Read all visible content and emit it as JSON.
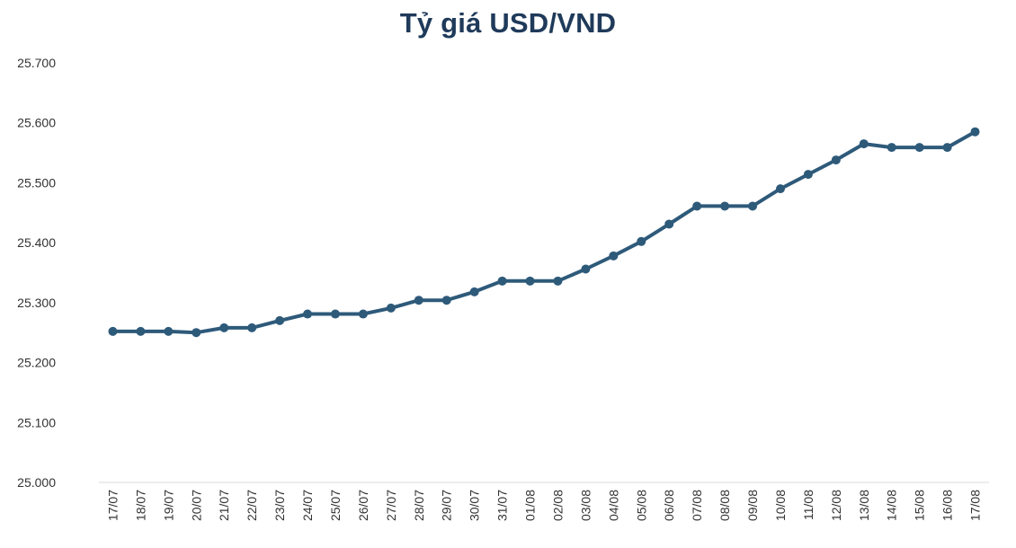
{
  "chart_data": {
    "type": "line",
    "title": "Tỷ giá USD/VND",
    "xlabel": "",
    "ylabel": "",
    "ylim": [
      25000,
      25700
    ],
    "ytick_step": 100,
    "ytick_labels": [
      "25.000",
      "25.100",
      "25.200",
      "25.300",
      "25.400",
      "25.500",
      "25.600",
      "25.700"
    ],
    "grid": false,
    "legend": "none",
    "line_color": "#2e5a7a",
    "categories": [
      "17/07",
      "18/07",
      "19/07",
      "20/07",
      "21/07",
      "22/07",
      "23/07",
      "24/07",
      "25/07",
      "26/07",
      "27/07",
      "28/07",
      "29/07",
      "30/07",
      "31/07",
      "01/08",
      "02/08",
      "03/08",
      "04/08",
      "05/08",
      "06/08",
      "07/08",
      "08/08",
      "09/08",
      "10/08",
      "11/08",
      "12/08",
      "13/08",
      "14/08",
      "15/08",
      "16/08",
      "17/08"
    ],
    "series": [
      {
        "values": [
          25252,
          25252,
          25252,
          25250,
          25258,
          25258,
          25270,
          25281,
          25281,
          25281,
          25291,
          25304,
          25304,
          25318,
          25336,
          25336,
          25336,
          25356,
          25378,
          25402,
          25431,
          25461,
          25461,
          25461,
          25490,
          25514,
          25538,
          25565,
          25559,
          25559,
          25559,
          25585
        ]
      }
    ]
  }
}
